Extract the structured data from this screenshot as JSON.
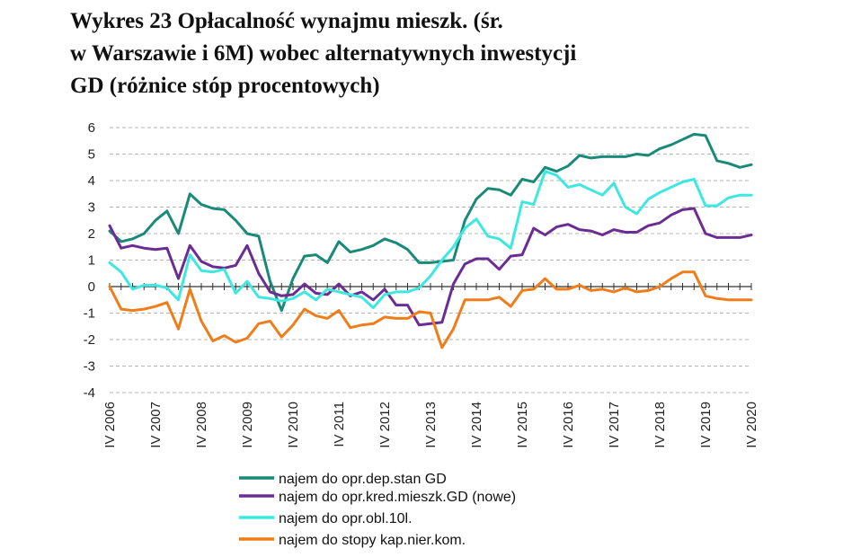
{
  "title_lines": [
    "Wykres 23 Opłacalność wynajmu mieszk. (śr.",
    "w Warszawie i 6M) wobec alternatywnych inwestycji",
    "GD (różnice stóp procentowych)"
  ],
  "chart_data": {
    "type": "line",
    "ylim": [
      -4,
      6
    ],
    "yticks": [
      6,
      5,
      4,
      3,
      2,
      1,
      0,
      -1,
      -2,
      -3,
      -4
    ],
    "xlim": [
      2006.75,
      2020.75
    ],
    "xtick_labels": [
      "IV 2006",
      "IV 2007",
      "IV 2008",
      "IV 2009",
      "IV 2010",
      "IV 2011",
      "IV 2012",
      "IV 2013",
      "IV 2014",
      "IV 2015",
      "IV 2016",
      "IV 2017",
      "IV 2018",
      "IV 2019",
      "IV 2020"
    ],
    "grid": true,
    "legend_position": "bottom",
    "x": [
      2006.75,
      2007.0,
      2007.25,
      2007.5,
      2007.75,
      2008.0,
      2008.25,
      2008.5,
      2008.75,
      2009.0,
      2009.25,
      2009.5,
      2009.75,
      2010.0,
      2010.25,
      2010.5,
      2010.75,
      2011.0,
      2011.25,
      2011.5,
      2011.75,
      2012.0,
      2012.25,
      2012.5,
      2012.75,
      2013.0,
      2013.25,
      2013.5,
      2013.75,
      2014.0,
      2014.25,
      2014.5,
      2014.75,
      2015.0,
      2015.25,
      2015.5,
      2015.75,
      2016.0,
      2016.25,
      2016.5,
      2016.75,
      2017.0,
      2017.25,
      2017.5,
      2017.75,
      2018.0,
      2018.25,
      2018.5,
      2018.75,
      2019.0,
      2019.25,
      2019.5,
      2019.75,
      2020.0,
      2020.25,
      2020.5,
      2020.75
    ],
    "series": [
      {
        "name": "najem do opr.dep.stan GD",
        "color": "#1a8a78",
        "values": [
          2.1,
          1.7,
          1.8,
          2.0,
          2.5,
          2.85,
          2.0,
          3.5,
          3.1,
          2.95,
          2.9,
          2.5,
          2.0,
          1.9,
          0.2,
          -0.9,
          0.3,
          1.15,
          1.2,
          0.9,
          1.7,
          1.3,
          1.4,
          1.55,
          1.8,
          1.65,
          1.4,
          0.9,
          0.9,
          0.95,
          1.0,
          2.5,
          3.3,
          3.7,
          3.65,
          3.45,
          4.05,
          3.95,
          4.5,
          4.35,
          4.55,
          4.95,
          4.85,
          4.9,
          4.9,
          4.9,
          5.0,
          4.95,
          5.2,
          5.35,
          5.55,
          5.75,
          5.7,
          4.75,
          4.65,
          4.5,
          4.6
        ]
      },
      {
        "name": "najem do opr.kred.mieszk.GD (nowe)",
        "color": "#6b2d91",
        "values": [
          2.3,
          1.45,
          1.55,
          1.45,
          1.4,
          1.45,
          0.3,
          1.55,
          0.95,
          0.75,
          0.7,
          0.8,
          1.55,
          0.5,
          -0.2,
          -0.35,
          -0.3,
          0.1,
          -0.25,
          -0.3,
          0.1,
          -0.35,
          -0.2,
          -0.5,
          -0.1,
          -0.7,
          -0.7,
          -1.45,
          -1.4,
          -1.35,
          0.1,
          0.85,
          1.05,
          1.05,
          0.65,
          1.15,
          1.2,
          2.2,
          1.95,
          2.25,
          2.35,
          2.15,
          2.1,
          1.95,
          2.15,
          2.05,
          2.05,
          2.3,
          2.4,
          2.7,
          2.9,
          2.95,
          2.0,
          1.85,
          1.85,
          1.85,
          1.95
        ]
      },
      {
        "name": "najem do opr.obl.10l.",
        "color": "#3ee8e0",
        "values": [
          0.9,
          0.55,
          -0.1,
          0.05,
          0.05,
          -0.05,
          -0.5,
          1.2,
          0.6,
          0.55,
          0.65,
          -0.25,
          0.2,
          -0.4,
          -0.45,
          -0.55,
          -0.45,
          -0.2,
          -0.5,
          -0.1,
          -0.2,
          -0.3,
          -0.4,
          -0.8,
          -0.3,
          -0.2,
          -0.2,
          -0.05,
          0.4,
          1.0,
          1.5,
          2.2,
          2.55,
          1.9,
          1.8,
          1.45,
          3.2,
          3.1,
          4.35,
          4.2,
          3.75,
          3.85,
          3.65,
          3.45,
          3.9,
          3.0,
          2.75,
          3.3,
          3.55,
          3.75,
          3.95,
          4.05,
          3.05,
          3.05,
          3.35,
          3.45,
          3.45
        ]
      },
      {
        "name": "najem do stopy kap.nier.kom.",
        "color": "#ef7d1a",
        "values": [
          0.0,
          -0.85,
          -0.9,
          -0.85,
          -0.75,
          -0.6,
          -1.6,
          -0.1,
          -1.3,
          -2.05,
          -1.85,
          -2.1,
          -1.95,
          -1.4,
          -1.3,
          -1.9,
          -1.45,
          -0.85,
          -1.1,
          -1.2,
          -0.9,
          -1.55,
          -1.45,
          -1.4,
          -1.15,
          -1.2,
          -1.2,
          -0.95,
          -1.0,
          -2.3,
          -1.6,
          -0.5,
          -0.5,
          -0.5,
          -0.4,
          -0.75,
          -0.15,
          -0.1,
          0.3,
          -0.1,
          -0.1,
          0.05,
          -0.15,
          -0.1,
          -0.2,
          -0.05,
          -0.2,
          -0.15,
          0.0,
          0.3,
          0.55,
          0.55,
          -0.35,
          -0.45,
          -0.5,
          -0.5,
          -0.5
        ]
      }
    ]
  }
}
